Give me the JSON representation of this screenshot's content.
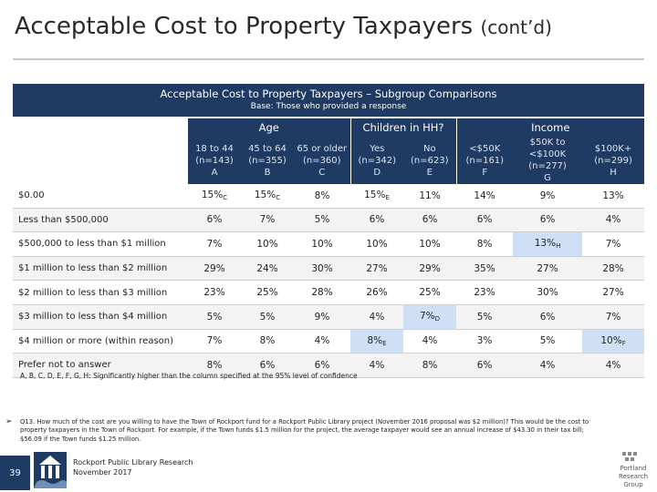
{
  "slide": {
    "title_main": "Acceptable Cost to Property Taxpayers",
    "title_suffix": "(cont’d)"
  },
  "banner": {
    "title": "Acceptable Cost to Property Taxpayers – Subgroup Comparisons",
    "base": "Base: Those who provided a response"
  },
  "table": {
    "groups": [
      "Age",
      "Children in HH?",
      "Income"
    ],
    "columns": [
      {
        "label": "18 to 44",
        "n": "(n=143)",
        "letter": "A"
      },
      {
        "label": "45 to 64",
        "n": "(n=355)",
        "letter": "B"
      },
      {
        "label": "65 or older",
        "n": "(n=360)",
        "letter": "C"
      },
      {
        "label": "Yes",
        "n": "(n=342)",
        "letter": "D"
      },
      {
        "label": "No",
        "n": "(n=623)",
        "letter": "E"
      },
      {
        "label": "<$50K",
        "n": "(n=161)",
        "letter": "F"
      },
      {
        "label": "$50K to <$100K",
        "n": "(n=277)",
        "letter": "G"
      },
      {
        "label": "$100K+",
        "n": "(n=299)",
        "letter": "H"
      }
    ],
    "rows": [
      {
        "label": "$0.00",
        "cells": [
          {
            "v": "15%",
            "sig": "C"
          },
          {
            "v": "15%",
            "sig": "C"
          },
          {
            "v": "8%"
          },
          {
            "v": "15%",
            "sig": "E"
          },
          {
            "v": "11%"
          },
          {
            "v": "14%"
          },
          {
            "v": "9%"
          },
          {
            "v": "13%"
          }
        ]
      },
      {
        "label": "Less than $500,000",
        "cells": [
          {
            "v": "6%"
          },
          {
            "v": "7%"
          },
          {
            "v": "5%"
          },
          {
            "v": "6%"
          },
          {
            "v": "6%"
          },
          {
            "v": "6%"
          },
          {
            "v": "6%"
          },
          {
            "v": "4%"
          }
        ]
      },
      {
        "label": "$500,000 to less than $1 million",
        "cells": [
          {
            "v": "7%"
          },
          {
            "v": "10%"
          },
          {
            "v": "10%"
          },
          {
            "v": "10%"
          },
          {
            "v": "10%"
          },
          {
            "v": "8%"
          },
          {
            "v": "13%",
            "sig": "H",
            "hl": true
          },
          {
            "v": "7%"
          }
        ]
      },
      {
        "label": "$1 million to less than $2 million",
        "cells": [
          {
            "v": "29%"
          },
          {
            "v": "24%"
          },
          {
            "v": "30%"
          },
          {
            "v": "27%"
          },
          {
            "v": "29%"
          },
          {
            "v": "35%"
          },
          {
            "v": "27%"
          },
          {
            "v": "28%"
          }
        ]
      },
      {
        "label": "$2 million to less than $3 million",
        "cells": [
          {
            "v": "23%"
          },
          {
            "v": "25%"
          },
          {
            "v": "28%"
          },
          {
            "v": "26%"
          },
          {
            "v": "25%"
          },
          {
            "v": "23%"
          },
          {
            "v": "30%"
          },
          {
            "v": "27%"
          }
        ]
      },
      {
        "label": "$3 million to less than $4 million",
        "cells": [
          {
            "v": "5%"
          },
          {
            "v": "5%"
          },
          {
            "v": "9%"
          },
          {
            "v": "4%"
          },
          {
            "v": "7%",
            "sig": "D",
            "hl": true
          },
          {
            "v": "5%"
          },
          {
            "v": "6%"
          },
          {
            "v": "7%"
          }
        ]
      },
      {
        "label": "$4 million or more (within reason)",
        "cells": [
          {
            "v": "7%"
          },
          {
            "v": "8%"
          },
          {
            "v": "4%"
          },
          {
            "v": "8%",
            "sig": "E",
            "hl": true
          },
          {
            "v": "4%"
          },
          {
            "v": "3%"
          },
          {
            "v": "5%"
          },
          {
            "v": "10%",
            "sig": "F",
            "hl": true
          }
        ]
      },
      {
        "label": "Prefer not to answer",
        "cells": [
          {
            "v": "8%"
          },
          {
            "v": "6%"
          },
          {
            "v": "6%"
          },
          {
            "v": "4%"
          },
          {
            "v": "8%"
          },
          {
            "v": "6%"
          },
          {
            "v": "4%"
          },
          {
            "v": "4%"
          }
        ]
      }
    ]
  },
  "footnote": "A, B, C, D, E, F, G, H: Significantly higher than the column specified at the 95% level of confidence",
  "question": {
    "arrow": "➢",
    "text": "Q13. How much of the cost are you willing to have the Town of Rockport fund for a Rockport Public Library project (November 2016 proposal was $2 million)? This would be the cost to property taxpayers in the Town of Rockport. For example, if the Town funds $1.5 million for the project, the average taxpayer would see an annual increase of $43.30 in their tax bill; $56.09 if the Town funds $1.25 million."
  },
  "footer": {
    "page_number": "39",
    "org_line1": "Rockport Public Library Research",
    "org_line2": "November 2017",
    "prg_name": [
      "Portland",
      "Research",
      "Group"
    ]
  },
  "colors": {
    "navy": "#1f3a63",
    "highlight": "#cfe0f6"
  }
}
